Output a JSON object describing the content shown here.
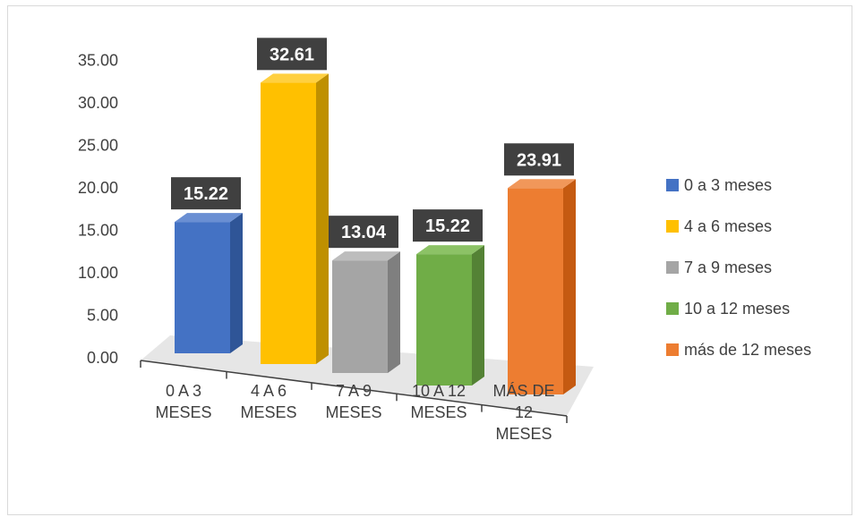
{
  "chart_data": {
    "type": "bar",
    "categories": [
      [
        "0 A 3",
        "MESES"
      ],
      [
        "4 A 6",
        "MESES"
      ],
      [
        "7 A 9",
        "MESES"
      ],
      [
        "10 A 12",
        "MESES"
      ],
      [
        "MÁS DE",
        "12",
        "MESES"
      ]
    ],
    "values": [
      15.22,
      32.61,
      13.04,
      15.22,
      23.91
    ],
    "data_labels": [
      "15.22",
      "32.61",
      "13.04",
      "15.22",
      "23.91"
    ],
    "yticks": [
      "0.00",
      "5.00",
      "10.00",
      "15.00",
      "20.00",
      "25.00",
      "30.00",
      "35.00"
    ],
    "ylim": [
      0,
      35
    ],
    "legend": {
      "placement": "right",
      "entries": [
        "0 a 3 meses",
        "4 a 6 meses",
        "7 a 9 meses",
        "10 a 12 meses",
        "más de 12 meses"
      ]
    },
    "colors": [
      "#4472C4",
      "#FFC000",
      "#A5A5A5",
      "#70AD47",
      "#ED7D31"
    ],
    "side_colors": [
      "#2F5597",
      "#BF9000",
      "#7F7F7F",
      "#548235",
      "#C55A11"
    ],
    "top_colors": [
      "#6A8FD3",
      "#FFD040",
      "#BDBDBD",
      "#8CC266",
      "#F1975A"
    ],
    "floor_color": "#e6e6e6",
    "label_box_color": "#404040",
    "gridlines": false
  }
}
